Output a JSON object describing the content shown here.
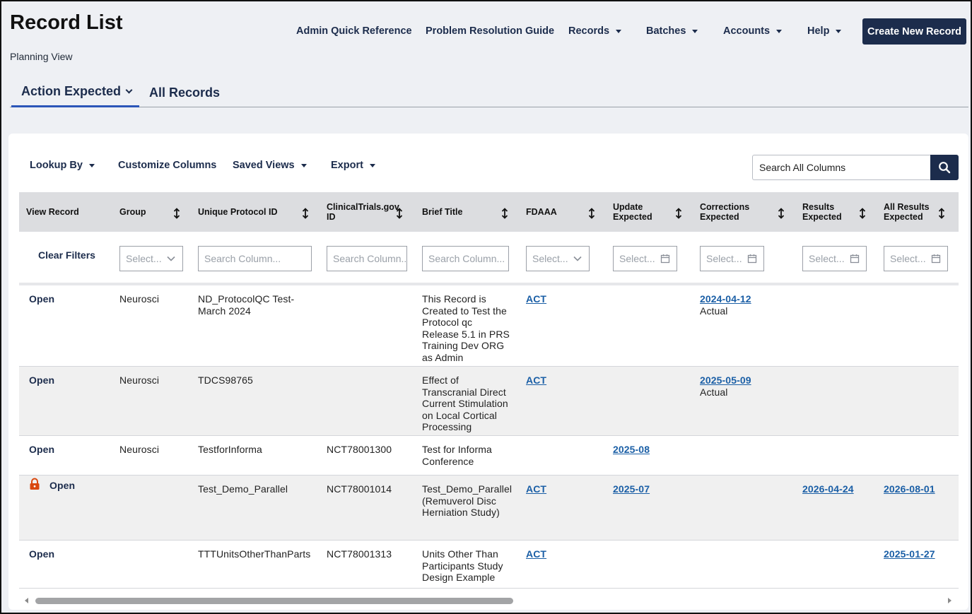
{
  "page": {
    "title": "Record List",
    "subtitle": "Planning View"
  },
  "topnav": {
    "items": [
      {
        "label": "Admin Quick Reference",
        "dropdown": false
      },
      {
        "label": "Problem Resolution Guide",
        "dropdown": false
      },
      {
        "label": "Records",
        "dropdown": true
      },
      {
        "label": "Batches",
        "dropdown": true
      },
      {
        "label": "Accounts",
        "dropdown": true
      },
      {
        "label": "Help",
        "dropdown": true
      }
    ],
    "create_button": "Create New Record"
  },
  "tabs": [
    {
      "label": "Action Expected",
      "active": true
    },
    {
      "label": "All Records",
      "active": false
    }
  ],
  "toolbar": {
    "lookup_by": "Lookup By",
    "customize_columns": "Customize Columns",
    "saved_views": "Saved Views",
    "export": "Export",
    "search_placeholder": "Search All Columns"
  },
  "table": {
    "columns": [
      {
        "label": "View Record",
        "sortable": false
      },
      {
        "label": "Group",
        "sortable": true
      },
      {
        "label": "Unique Protocol ID",
        "sortable": true
      },
      {
        "label": "ClinicalTrials.gov ID",
        "sortable": true
      },
      {
        "label": "Brief Title",
        "sortable": true
      },
      {
        "label": "FDAAA",
        "sortable": true
      },
      {
        "label": "Update Expected",
        "sortable": true
      },
      {
        "label": "Corrections Expected",
        "sortable": true
      },
      {
        "label": "Results Expected",
        "sortable": true
      },
      {
        "label": "All Results Expected",
        "sortable": true
      }
    ],
    "clear_filters": "Clear Filters",
    "filters": [
      {
        "placeholder": "Select...",
        "type": "dropdown"
      },
      {
        "placeholder": "Search Column...",
        "type": "text"
      },
      {
        "placeholder": "Search Column...",
        "type": "text"
      },
      {
        "placeholder": "Search Column...",
        "type": "text"
      },
      {
        "placeholder": "Select...",
        "type": "dropdown"
      },
      {
        "placeholder": "Select...",
        "type": "date"
      },
      {
        "placeholder": "Select...",
        "type": "date"
      },
      {
        "placeholder": "Select...",
        "type": "date"
      },
      {
        "placeholder": "Select...",
        "type": "date"
      }
    ],
    "rows": [
      {
        "locked": false,
        "view": "Open",
        "group": "Neurosci",
        "protocol_id": [
          "ND_ProtocolQC Test-",
          "March 2024"
        ],
        "nct_id": "",
        "brief_title": [
          "This Record is",
          "Created to Test the",
          "Protocol qc",
          "Release 5.1 in PRS",
          "Training Dev ORG",
          "as Admin"
        ],
        "fdaaa": "ACT",
        "update_expected": "",
        "corrections_expected": {
          "date": "2024-04-12",
          "note": "Actual"
        },
        "results_expected": "",
        "all_results_expected": ""
      },
      {
        "locked": false,
        "view": "Open",
        "group": "Neurosci",
        "protocol_id": [
          "TDCS98765"
        ],
        "nct_id": "",
        "brief_title": [
          "Effect of",
          "Transcranial Direct",
          "Current Stimulation",
          "on Local Cortical",
          "Processing"
        ],
        "fdaaa": "ACT",
        "update_expected": "",
        "corrections_expected": {
          "date": "2025-05-09",
          "note": "Actual"
        },
        "results_expected": "",
        "all_results_expected": ""
      },
      {
        "locked": false,
        "view": "Open",
        "group": "Neurosci",
        "protocol_id": [
          "TestforInforma"
        ],
        "nct_id": "NCT78001300",
        "brief_title": [
          "Test for Informa",
          "Conference"
        ],
        "fdaaa": "",
        "update_expected": "2025-08",
        "corrections_expected": {
          "date": "",
          "note": ""
        },
        "results_expected": "",
        "all_results_expected": ""
      },
      {
        "locked": true,
        "view": "Open",
        "group": "",
        "protocol_id": [
          "Test_Demo_Parallel"
        ],
        "nct_id": "NCT78001014",
        "brief_title": [
          "Test_Demo_Parallel",
          "(Remuverol Disc",
          "Herniation Study)"
        ],
        "fdaaa": "ACT",
        "update_expected": "2025-07",
        "corrections_expected": {
          "date": "",
          "note": ""
        },
        "results_expected": "2026-04-24",
        "all_results_expected": "2026-08-01"
      },
      {
        "locked": false,
        "view": "Open",
        "group": "",
        "protocol_id": [
          "TTTUnitsOtherThanParts"
        ],
        "nct_id": "NCT78001313",
        "brief_title": [
          "Units Other Than",
          "Participants Study",
          "Design Example"
        ],
        "fdaaa": "ACT",
        "update_expected": "",
        "corrections_expected": {
          "date": "",
          "note": ""
        },
        "results_expected": "",
        "all_results_expected": "2025-01-27"
      }
    ]
  },
  "colors": {
    "navy": "#1c2c4c",
    "link_blue": "#1b5fa6",
    "tab_underline": "#2b55b8",
    "lock": "#d9480f"
  }
}
